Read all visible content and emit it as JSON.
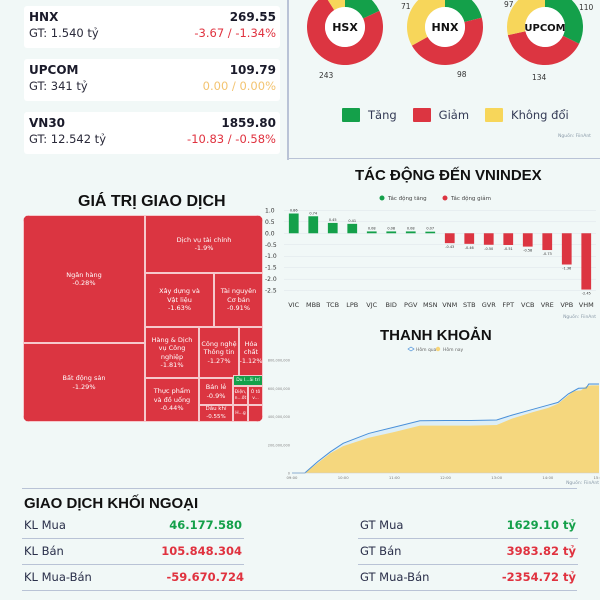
{
  "indices": [
    {
      "name": "HNX",
      "gt": "GT: 1.540 tỷ",
      "value": "269.55",
      "change": "-3.67 / -1.34%",
      "trend": "down"
    },
    {
      "name": "UPCOM",
      "gt": "GT: 341 tỷ",
      "value": "109.79",
      "change": "0.00 / 0.00%",
      "trend": "flat"
    },
    {
      "name": "VN30",
      "gt": "GT: 12.542 tỷ",
      "value": "1859.80",
      "change": "-10.83 / -0.58%",
      "trend": "down"
    }
  ],
  "colors": {
    "up": "#14a04a",
    "down": "#dc3541",
    "flat": "#f7d65a"
  },
  "breadth": {
    "donuts": [
      {
        "label": "HSX",
        "up_label": "",
        "down_label": "243",
        "flat_label": "",
        "up": 60,
        "down": 243,
        "flat": 30
      },
      {
        "label": "HNX",
        "up_label": "",
        "down_label": "98",
        "flat_label": "71",
        "up": 45,
        "down": 98,
        "flat": 71
      },
      {
        "label": "UPCOM",
        "up_label": "110",
        "down_label": "134",
        "flat_label": "97",
        "up": 110,
        "down": 134,
        "flat": 97
      }
    ],
    "legend": [
      "Tăng",
      "Giảm",
      "Không đổi"
    ],
    "source": "Nguồn: FiinAnt"
  },
  "treemap": {
    "title": "GIÁ TRỊ GIAO DỊCH",
    "cells": [
      {
        "name": "Ngân hàng",
        "pct": "-0.28%"
      },
      {
        "name": "Bất động sản",
        "pct": "-1.29%"
      },
      {
        "name": "Dịch vụ tài chính",
        "pct": "-1.9%"
      },
      {
        "name": "Xây dựng và Vật liệu",
        "pct": "-1.63%"
      },
      {
        "name": "Tài nguyên Cơ bản",
        "pct": "-0.91%"
      },
      {
        "name": "Hàng & Dịch vụ Công nghiệp",
        "pct": "-1.81%"
      },
      {
        "name": "Công nghệ Thông tin",
        "pct": "-1.27%"
      },
      {
        "name": "Hóa chất",
        "pct": "-1.12%"
      },
      {
        "name": "Thực phẩm và đồ uống",
        "pct": "-0.44%"
      },
      {
        "name": "Bán lẻ",
        "pct": "-0.9%"
      },
      {
        "name": "Du l...ải trí",
        "pct": ""
      },
      {
        "name": "Điện, n...ốt",
        "pct": ""
      },
      {
        "name": "Ô tô v...",
        "pct": ""
      },
      {
        "name": "Dầu khí",
        "pct": "-0.55%"
      },
      {
        "name": "H...g",
        "pct": ""
      }
    ]
  },
  "chart_data": [
    {
      "type": "bar",
      "title": "TÁC ĐỘNG ĐẾN VNINDEX",
      "legend": [
        "Tác động tăng",
        "Tác động giảm"
      ],
      "categories": [
        "VIC",
        "MBB",
        "TCB",
        "LPB",
        "VJC",
        "BID",
        "PGV",
        "MSN",
        "VNM",
        "STB",
        "GVR",
        "FPT",
        "VCB",
        "VRE",
        "VPB",
        "VHM"
      ],
      "values": [
        0.86,
        0.74,
        0.45,
        0.41,
        0.08,
        0.08,
        0.08,
        0.07,
        -0.43,
        -0.46,
        -0.5,
        -0.51,
        -0.58,
        -0.73,
        -1.36,
        -2.45
      ],
      "value_labels": [
        "0.86",
        "0.74",
        "0.45",
        "0.41",
        "0.08",
        "0.08",
        "0.08",
        "0.07",
        "-0.43",
        "-0.46",
        "-0.50",
        "-0.51",
        "-0.58",
        "-0.73",
        "-1.36",
        "-2.45"
      ],
      "yticks": [
        "1.0",
        "0.5",
        "0.0",
        "-0.5",
        "-1.0",
        "-1.5",
        "-2.0",
        "-2.5"
      ],
      "ylim": [
        -2.6,
        1.1
      ],
      "grid": true,
      "source": "Nguồn: FiinAnt"
    },
    {
      "type": "area",
      "title": "THANH KHOẢN",
      "legend": [
        "Hôm qua",
        "Hôm nay"
      ],
      "x": [
        "09:00",
        "10:00",
        "11:00",
        "12:00",
        "13:00",
        "14:00",
        "15:00"
      ],
      "yticks": [
        "0",
        "200,000,000",
        "400,000,000",
        "600,000,000",
        "800,000,000"
      ],
      "ylim": [
        0,
        800000000
      ],
      "series": [
        {
          "name": "Hôm qua",
          "points": [
            [
              0,
              0
            ],
            [
              0.25,
              0
            ],
            [
              0.5,
              80
            ],
            [
              0.75,
              150
            ],
            [
              1,
              210
            ],
            [
              1.5,
              280
            ],
            [
              2,
              325
            ],
            [
              2.5,
              370
            ],
            [
              3,
              372
            ],
            [
              3.5,
              372
            ],
            [
              4,
              375
            ],
            [
              4.3,
              410
            ],
            [
              4.7,
              450
            ],
            [
              5,
              480
            ],
            [
              5.2,
              500
            ],
            [
              5.4,
              560
            ],
            [
              5.6,
              600
            ],
            [
              5.75,
              602
            ],
            [
              5.8,
              630
            ],
            [
              6,
              630
            ]
          ]
        },
        {
          "name": "Hôm nay",
          "points": [
            [
              0,
              0
            ],
            [
              0.25,
              0
            ],
            [
              0.5,
              70
            ],
            [
              0.75,
              140
            ],
            [
              1,
              190
            ],
            [
              1.5,
              250
            ],
            [
              2,
              290
            ],
            [
              2.5,
              335
            ],
            [
              3,
              335
            ],
            [
              3.5,
              335
            ],
            [
              4,
              340
            ],
            [
              4.3,
              385
            ],
            [
              4.7,
              430
            ],
            [
              5,
              460
            ],
            [
              5.2,
              490
            ],
            [
              5.4,
              550
            ],
            [
              5.5,
              580
            ],
            [
              5.65,
              585
            ],
            [
              5.75,
              615
            ],
            [
              5.85,
              620
            ],
            [
              6,
              620
            ]
          ]
        }
      ],
      "series_units": "millions",
      "source": "Nguồn: FiinAnt"
    }
  ],
  "foreign": {
    "title": "GIAO DỊCH KHỐI NGOẠI",
    "left": [
      {
        "label": "KL Mua",
        "value": "46.177.580",
        "trend": "up"
      },
      {
        "label": "KL Bán",
        "value": "105.848.304",
        "trend": "down"
      },
      {
        "label": "KL Mua-Bán",
        "value": "-59.670.724",
        "trend": "down"
      }
    ],
    "right": [
      {
        "label": "GT Mua",
        "value": "1629.10 tỷ",
        "trend": "up"
      },
      {
        "label": "GT Bán",
        "value": "3983.82 tỷ",
        "trend": "down"
      },
      {
        "label": "GT Mua-Bán",
        "value": "-2354.72 tỷ",
        "trend": "down"
      }
    ]
  }
}
